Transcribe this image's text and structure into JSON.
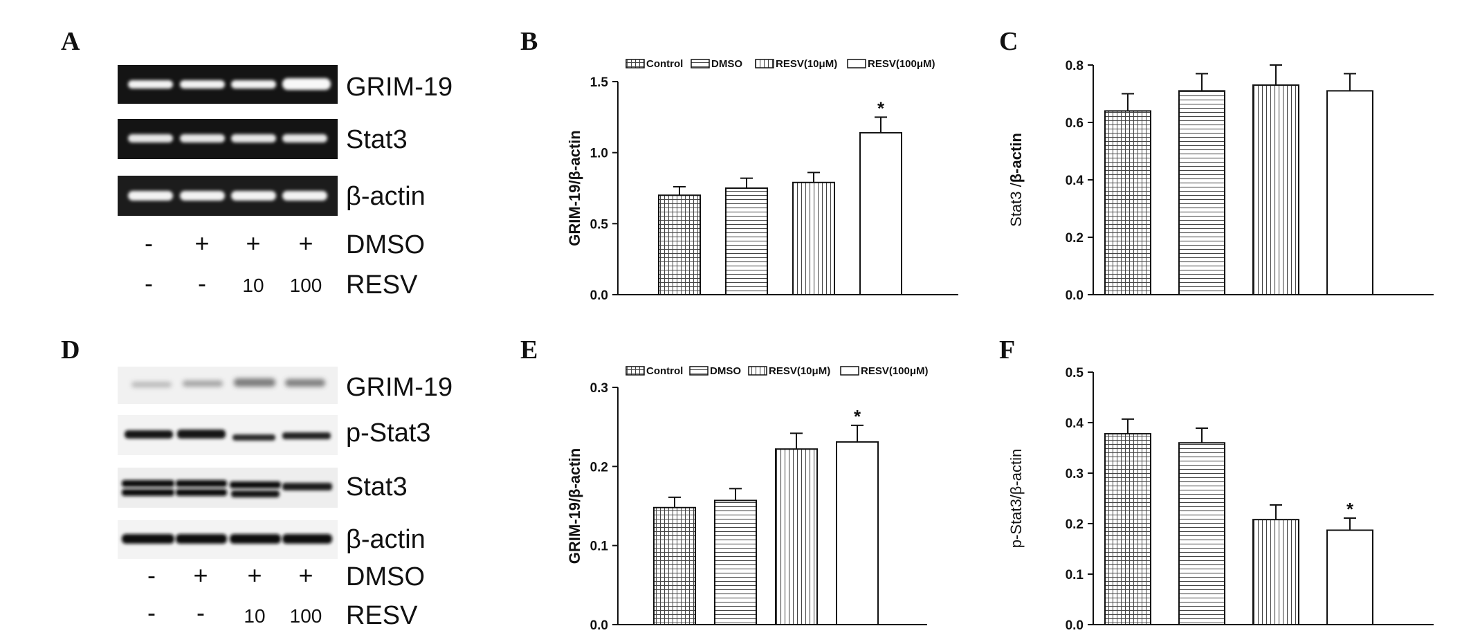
{
  "panel_labels": {
    "a": "A",
    "b": "B",
    "c": "C",
    "d": "D",
    "e": "E",
    "f": "F"
  },
  "blot_a": {
    "band_labels": [
      "GRIM-19",
      "Stat3",
      "β-actin"
    ],
    "dmso_label": "DMSO",
    "resv_label": "RESV",
    "dmso_signs": [
      "-",
      "+",
      "+",
      "+"
    ],
    "resv_values": [
      "-",
      "-",
      "10",
      "100"
    ]
  },
  "blot_d": {
    "band_labels": [
      "GRIM-19",
      "p-Stat3",
      "Stat3",
      "β-actin"
    ],
    "dmso_label": "DMSO",
    "resv_label": "RESV",
    "dmso_signs": [
      "-",
      "+",
      "+",
      "+"
    ],
    "resv_values": [
      "-",
      "-",
      "10",
      "100"
    ]
  },
  "patterns": [
    "grid",
    "horizontal",
    "vertical",
    "blank"
  ],
  "chart_data": [
    {
      "panel": "B",
      "type": "bar",
      "categories": [
        "Control",
        "DMSO",
        "RESV(10μM)",
        "RESV(100μM)"
      ],
      "values": [
        0.7,
        0.75,
        0.79,
        1.14
      ],
      "errors": [
        0.06,
        0.07,
        0.07,
        0.11
      ],
      "significance": [
        "",
        "",
        "",
        "*"
      ],
      "ylabel": "GRIM-19/β-actin",
      "ylim": [
        0,
        1.5
      ],
      "yticks": [
        "0.0",
        "0.5",
        "1.0",
        "1.5"
      ],
      "legend": [
        "Control",
        "DMSO",
        "RESV(10μM)",
        "RESV(100μM)"
      ]
    },
    {
      "panel": "C",
      "type": "bar",
      "categories": [
        "Control",
        "DMSO",
        "RESV(10μM)",
        "RESV(100μM)"
      ],
      "values": [
        0.64,
        0.71,
        0.73,
        0.71
      ],
      "errors": [
        0.06,
        0.06,
        0.07,
        0.06
      ],
      "significance": [
        "",
        "",
        "",
        ""
      ],
      "ylabel_main": "Stat3 /",
      "ylabel_bold": "β-actin",
      "ylim": [
        0,
        0.8
      ],
      "yticks": [
        "0.0",
        "0.2",
        "0.4",
        "0.6",
        "0.8"
      ]
    },
    {
      "panel": "E",
      "type": "bar",
      "categories": [
        "Control",
        "DMSO",
        "RESV(10μM)",
        "RESV(100μM)"
      ],
      "values": [
        0.148,
        0.157,
        0.222,
        0.231
      ],
      "errors": [
        0.013,
        0.015,
        0.02,
        0.021
      ],
      "significance": [
        "",
        "",
        "",
        "*"
      ],
      "ylabel": "GRIM-19/β-actin",
      "ylim": [
        0,
        0.3
      ],
      "yticks": [
        "0.0",
        "0.1",
        "0.2",
        "0.3"
      ],
      "legend": [
        "Control",
        "DMSO",
        "RESV(10μM)",
        "RESV(100μM)"
      ]
    },
    {
      "panel": "F",
      "type": "bar",
      "categories": [
        "Control",
        "DMSO",
        "RESV(10μM)",
        "RESV(100μM)"
      ],
      "values": [
        0.378,
        0.36,
        0.208,
        0.187
      ],
      "errors": [
        0.029,
        0.029,
        0.029,
        0.024
      ],
      "significance": [
        "",
        "",
        "",
        "*"
      ],
      "ylabel": "p-Stat3/β-actin",
      "ylim": [
        0,
        0.5
      ],
      "yticks": [
        "0.0",
        "0.1",
        "0.2",
        "0.3",
        "0.4",
        "0.5"
      ]
    }
  ]
}
